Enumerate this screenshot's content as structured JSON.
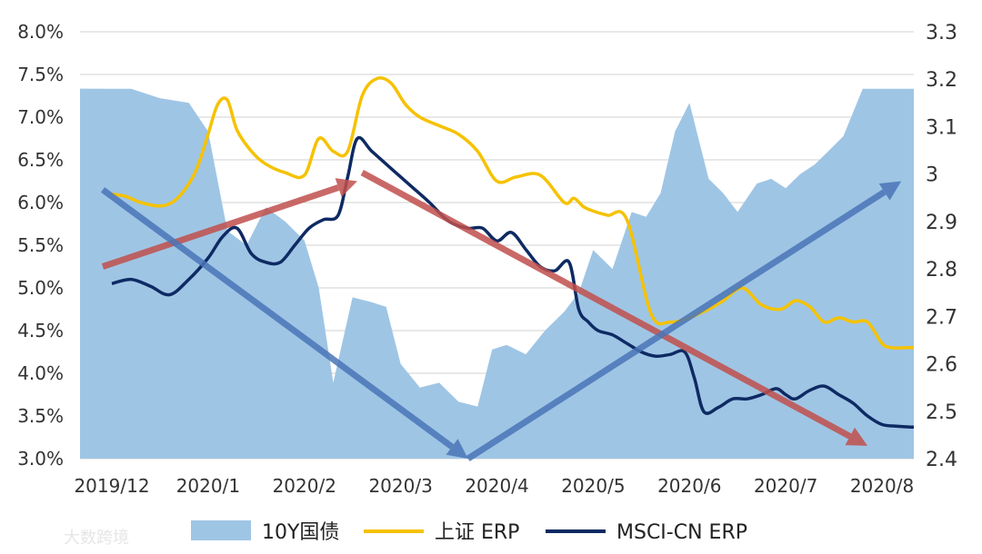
{
  "chart_data": {
    "type": "area+line",
    "title": "",
    "watermark": "大数跨境",
    "x_labels": [
      "2019/12",
      "2020/1",
      "2020/2",
      "2020/3",
      "2020/4",
      "2020/5",
      "2020/6",
      "2020/7",
      "2020/8"
    ],
    "left_axis": {
      "ticks": [
        "8.0%",
        "7.5%",
        "7.0%",
        "6.5%",
        "6.0%",
        "5.5%",
        "5.0%",
        "4.5%",
        "4.0%",
        "3.5%",
        "3.0%"
      ],
      "range": [
        3.0,
        8.0
      ]
    },
    "right_axis": {
      "ticks": [
        "3.3",
        "3.2",
        "3.1",
        "3",
        "2.9",
        "2.8",
        "2.7",
        "2.6",
        "2.5",
        "2.4"
      ],
      "range": [
        2.4,
        3.3
      ]
    },
    "series": [
      {
        "name": "10Y国债",
        "type": "area",
        "axis": "right",
        "color": "#9fc5e5",
        "x": [
          0,
          0.2,
          0.5,
          0.8,
          1.0,
          1.2,
          1.4,
          1.6,
          1.8,
          2.0,
          2.15,
          2.3,
          2.5,
          2.7,
          2.85,
          3.0,
          3.2,
          3.4,
          3.6,
          3.8,
          3.95,
          4.1,
          4.3,
          4.5,
          4.7,
          4.85,
          5.0,
          5.2,
          5.4,
          5.55,
          5.7,
          5.85,
          6.0,
          6.2,
          6.35,
          6.5,
          6.7,
          6.85,
          7.0,
          7.15,
          7.3,
          7.45,
          7.6,
          7.8,
          7.95,
          8.1,
          8.3,
          8.55
        ],
        "values": [
          3.18,
          3.18,
          3.16,
          3.15,
          3.09,
          2.88,
          2.85,
          2.93,
          2.9,
          2.86,
          2.76,
          2.56,
          2.74,
          2.73,
          2.72,
          2.6,
          2.55,
          2.56,
          2.52,
          2.51,
          2.63,
          2.64,
          2.62,
          2.67,
          2.71,
          2.75,
          2.84,
          2.8,
          2.92,
          2.91,
          2.96,
          3.09,
          3.15,
          2.99,
          2.96,
          2.92,
          2.98,
          2.99,
          2.97,
          3.0,
          3.02,
          3.05,
          3.08,
          3.18,
          3.18,
          3.18,
          3.18,
          3.18
        ]
      },
      {
        "name": "上证 ERP",
        "type": "line",
        "axis": "left",
        "color": "#f5c200",
        "x": [
          0,
          0.15,
          0.3,
          0.5,
          0.65,
          0.8,
          0.9,
          1.0,
          1.1,
          1.2,
          1.3,
          1.45,
          1.6,
          1.8,
          2.0,
          2.15,
          2.3,
          2.45,
          2.6,
          2.75,
          2.9,
          3.05,
          3.2,
          3.4,
          3.6,
          3.8,
          4.0,
          4.2,
          4.45,
          4.7,
          4.8,
          4.9,
          5.0,
          5.15,
          5.35,
          5.6,
          5.8,
          6.0,
          6.1,
          6.2,
          6.35,
          6.55,
          6.75,
          6.95,
          7.1,
          7.25,
          7.4,
          7.55,
          7.7,
          7.85,
          8.0,
          8.1,
          8.25,
          8.4
        ],
        "values": [
          6.1,
          6.07,
          6.0,
          5.96,
          6.02,
          6.22,
          6.45,
          6.8,
          7.15,
          7.2,
          6.85,
          6.6,
          6.45,
          6.35,
          6.32,
          6.75,
          6.6,
          6.6,
          7.25,
          7.45,
          7.4,
          7.15,
          7.0,
          6.9,
          6.8,
          6.6,
          6.25,
          6.3,
          6.32,
          6.0,
          6.05,
          5.95,
          5.9,
          5.85,
          5.8,
          4.7,
          4.6,
          4.65,
          4.7,
          4.75,
          4.85,
          5.0,
          4.8,
          4.75,
          4.85,
          4.78,
          4.6,
          4.65,
          4.6,
          4.6,
          4.35,
          4.3,
          4.3,
          4.3
        ],
        "note": "x positions are fractional month indices on the 2019/12–2020/8 axis"
      },
      {
        "name": "MSCI-CN ERP",
        "type": "line",
        "axis": "left",
        "color": "#0e2a63",
        "x": [
          0,
          0.2,
          0.4,
          0.6,
          0.8,
          1.0,
          1.15,
          1.3,
          1.45,
          1.6,
          1.75,
          1.9,
          2.05,
          2.2,
          2.35,
          2.45,
          2.55,
          2.7,
          2.9,
          3.1,
          3.3,
          3.5,
          3.7,
          3.85,
          4.0,
          4.15,
          4.3,
          4.45,
          4.6,
          4.75,
          4.85,
          4.95,
          5.05,
          5.2,
          5.35,
          5.5,
          5.65,
          5.8,
          5.95,
          6.05,
          6.15,
          6.3,
          6.45,
          6.6,
          6.75,
          6.9,
          7.0,
          7.1,
          7.25,
          7.4,
          7.55,
          7.7,
          7.85,
          8.0,
          8.15,
          8.3,
          8.4
        ],
        "values": [
          5.05,
          5.1,
          5.02,
          4.92,
          5.1,
          5.35,
          5.6,
          5.7,
          5.4,
          5.3,
          5.3,
          5.5,
          5.7,
          5.8,
          5.85,
          6.3,
          6.75,
          6.6,
          6.4,
          6.2,
          6.0,
          5.78,
          5.7,
          5.7,
          5.55,
          5.65,
          5.45,
          5.25,
          5.2,
          5.3,
          4.75,
          4.6,
          4.5,
          4.45,
          4.35,
          4.25,
          4.2,
          4.22,
          4.25,
          3.95,
          3.55,
          3.6,
          3.7,
          3.7,
          3.75,
          3.82,
          3.75,
          3.7,
          3.8,
          3.85,
          3.75,
          3.65,
          3.5,
          3.4,
          3.38,
          3.37,
          3.37
        ]
      }
    ],
    "annotations": [
      {
        "type": "arrow",
        "color": "#c0504d",
        "from": [
          0,
          5.25
        ],
        "to": [
          2.55,
          6.25
        ]
      },
      {
        "type": "arrow",
        "color": "#c0504d",
        "from": [
          2.6,
          6.35
        ],
        "to": [
          7.85,
          3.15
        ]
      },
      {
        "type": "arrow",
        "color": "#4a76b8",
        "from": [
          0,
          6.15
        ],
        "to": [
          3.7,
          3.0
        ]
      },
      {
        "type": "arrow",
        "color": "#4a76b8",
        "from": [
          3.7,
          3.0
        ],
        "to": [
          8.2,
          6.25
        ]
      }
    ],
    "legend": {
      "position": "bottom",
      "items": [
        {
          "label": "10Y国债",
          "color": "#9fc5e5",
          "kind": "area"
        },
        {
          "label": "上证 ERP",
          "color": "#f5c200",
          "kind": "line"
        },
        {
          "label": "MSCI-CN ERP",
          "color": "#0e2a63",
          "kind": "line"
        }
      ]
    }
  }
}
